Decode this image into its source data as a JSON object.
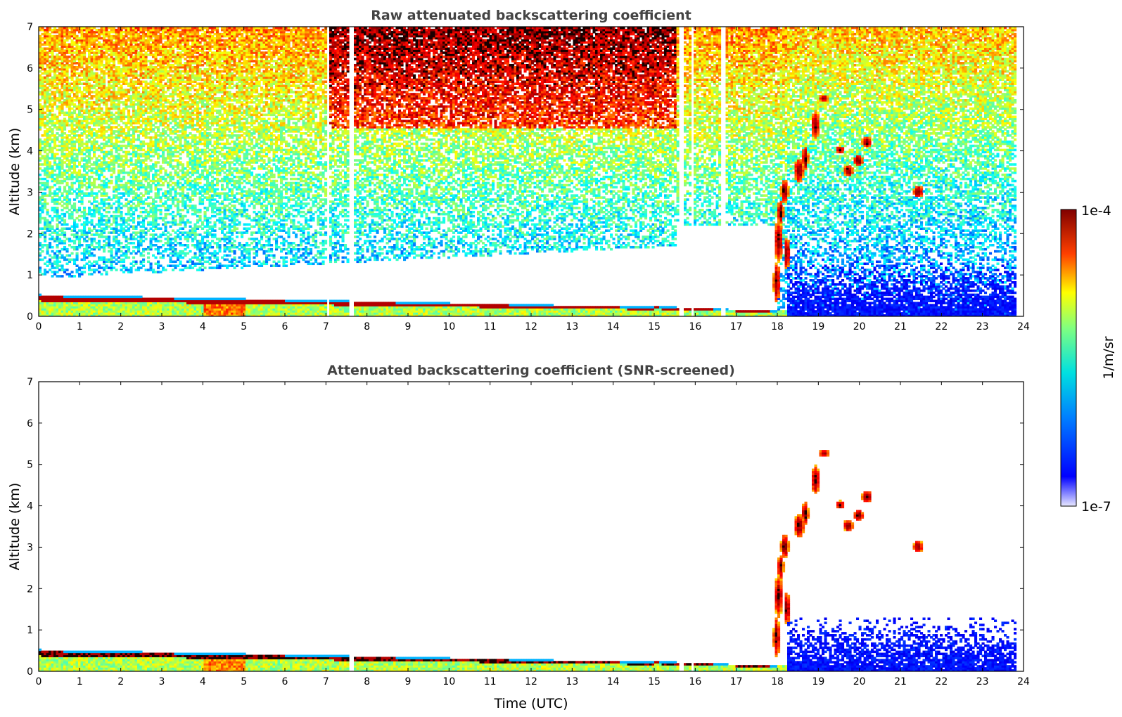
{
  "chart_data": [
    {
      "type": "heatmap",
      "title": "Raw attenuated backscattering coefficient",
      "xlabel": "",
      "ylabel": "Altitude (km)",
      "xlim": [
        0,
        24
      ],
      "ylim": [
        0,
        7
      ],
      "x_ticks": [
        "0",
        "1",
        "2",
        "3",
        "4",
        "5",
        "6",
        "7",
        "8",
        "9",
        "10",
        "11",
        "12",
        "13",
        "14",
        "15",
        "16",
        "17",
        "18",
        "19",
        "20",
        "21",
        "22",
        "23",
        "24"
      ],
      "y_ticks": [
        "0",
        "1",
        "2",
        "3",
        "4",
        "5",
        "6",
        "7"
      ],
      "data_end_time": 23.8,
      "grid": false,
      "features": [
        {
          "name": "surface layer",
          "time_range": [
            0,
            18.2
          ],
          "altitude_km": [
            0.0,
            0.45
          ],
          "level": "high"
        },
        {
          "name": "cloud",
          "time_range": [
            17.9,
            18.4
          ],
          "altitude_km": [
            0.5,
            3.3
          ],
          "level": "very high"
        },
        {
          "name": "cloud",
          "time_range": [
            18.4,
            19.3
          ],
          "altitude_km": [
            3.3,
            5.4
          ],
          "level": "very high"
        },
        {
          "name": "cloud",
          "time_range": [
            19.4,
            20.3
          ],
          "altitude_km": [
            3.3,
            4.5
          ],
          "level": "very high"
        },
        {
          "name": "cloud",
          "time_range": [
            21.2,
            21.6
          ],
          "altitude_km": [
            2.8,
            3.3
          ],
          "level": "very high"
        },
        {
          "name": "boundary layer aerosol",
          "time_range": [
            18.2,
            23.8
          ],
          "altitude_km": [
            0.0,
            1.3
          ],
          "level": "low"
        }
      ]
    },
    {
      "type": "heatmap",
      "title": "Attenuated backscattering coefficient (SNR-screened)",
      "xlabel": "Time (UTC)",
      "ylabel": "Altitude (km)",
      "xlim": [
        0,
        24
      ],
      "ylim": [
        0,
        7
      ],
      "x_ticks": [
        "0",
        "1",
        "2",
        "3",
        "4",
        "5",
        "6",
        "7",
        "8",
        "9",
        "10",
        "11",
        "12",
        "13",
        "14",
        "15",
        "16",
        "17",
        "18",
        "19",
        "20",
        "21",
        "22",
        "23",
        "24"
      ],
      "y_ticks": [
        "0",
        "1",
        "2",
        "3",
        "4",
        "5",
        "6",
        "7"
      ],
      "data_end_time": 23.8,
      "grid": false
    }
  ],
  "colorbar": {
    "label": "1/m/sr",
    "min_label": "1e-7",
    "max_label": "1e-4",
    "scale": "log",
    "range": [
      1e-07,
      0.0001
    ],
    "colormap": "jet"
  }
}
